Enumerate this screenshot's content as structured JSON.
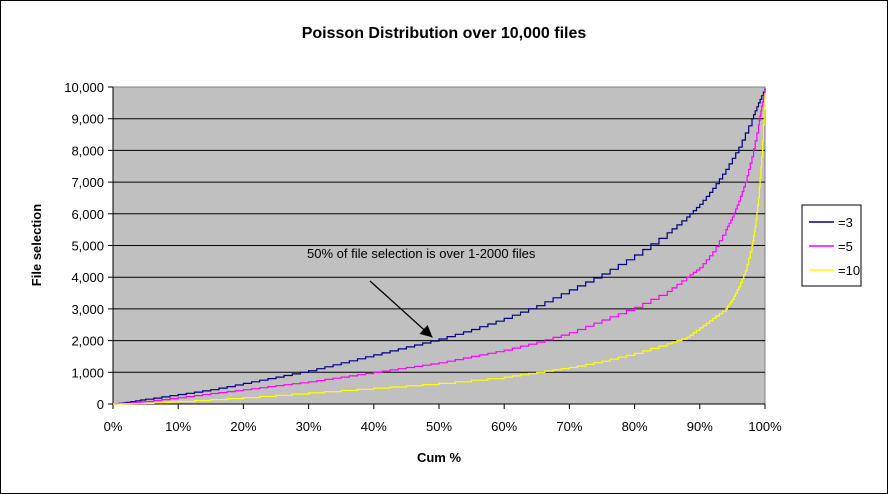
{
  "chart_data": {
    "type": "line",
    "title": "Poisson Distribution over 10,000 files",
    "xlabel": "Cum %",
    "ylabel": "File selection",
    "xlim": [
      0,
      100
    ],
    "ylim": [
      0,
      10000
    ],
    "x_ticks": [
      "0%",
      "10%",
      "20%",
      "30%",
      "40%",
      "50%",
      "60%",
      "70%",
      "80%",
      "90%",
      "100%"
    ],
    "y_ticks": [
      "0",
      "1,000",
      "2,000",
      "3,000",
      "4,000",
      "5,000",
      "6,000",
      "7,000",
      "8,000",
      "9,000",
      "10,000"
    ],
    "grid": true,
    "plot_background": "#c0c0c0",
    "legend_position": "right",
    "annotation": {
      "text": "50% of file selection is over 1-2000 files",
      "arrow_to": {
        "x": 49,
        "y": 2100
      }
    },
    "series": [
      {
        "name": "=3",
        "color": "#000080",
        "x": [
          0,
          2,
          5,
          10,
          15,
          20,
          25,
          30,
          35,
          40,
          45,
          50,
          55,
          60,
          65,
          70,
          75,
          80,
          85,
          88,
          90,
          92,
          94,
          96,
          98,
          99,
          100
        ],
        "y": [
          0,
          50,
          150,
          300,
          450,
          650,
          850,
          1050,
          1300,
          1550,
          1800,
          2050,
          2350,
          2700,
          3100,
          3600,
          4100,
          4700,
          5400,
          5900,
          6300,
          6800,
          7400,
          8100,
          9000,
          9500,
          9950
        ]
      },
      {
        "name": "=5",
        "color": "#ff00ff",
        "x": [
          0,
          2,
          5,
          10,
          15,
          20,
          25,
          30,
          35,
          40,
          45,
          50,
          55,
          60,
          65,
          70,
          75,
          80,
          85,
          88,
          90,
          92,
          94,
          95,
          96,
          97,
          98,
          99,
          99.5,
          100
        ],
        "y": [
          0,
          20,
          80,
          200,
          330,
          450,
          580,
          700,
          850,
          1000,
          1150,
          1300,
          1500,
          1700,
          1950,
          2250,
          2650,
          3050,
          3550,
          4000,
          4300,
          4800,
          5500,
          5900,
          6400,
          7000,
          7800,
          8800,
          9400,
          9900
        ]
      },
      {
        "name": "=10",
        "color": "#ffff00",
        "x": [
          0,
          5,
          10,
          20,
          30,
          40,
          50,
          60,
          65,
          70,
          75,
          80,
          85,
          88,
          90,
          92,
          94,
          95,
          96,
          97,
          98,
          98.5,
          99,
          99.5,
          100
        ],
        "y": [
          0,
          20,
          80,
          200,
          350,
          500,
          650,
          850,
          1000,
          1150,
          1350,
          1600,
          1900,
          2100,
          2400,
          2700,
          3000,
          3300,
          3700,
          4200,
          5000,
          5600,
          6500,
          7800,
          9800
        ]
      }
    ]
  }
}
